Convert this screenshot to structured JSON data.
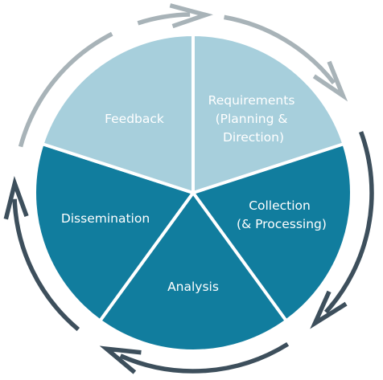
{
  "diagram": {
    "segments": [
      {
        "id": "requirements",
        "lines": [
          "Requirements",
          "(Planning &",
          "Direction)"
        ],
        "color": "#a7cfdc"
      },
      {
        "id": "collection",
        "lines": [
          "Collection",
          "(& Processing)"
        ],
        "color": "#117d9e"
      },
      {
        "id": "analysis",
        "lines": [
          "Analysis"
        ],
        "color": "#117d9e"
      },
      {
        "id": "dissemination",
        "lines": [
          "Dissemination"
        ],
        "color": "#117d9e"
      },
      {
        "id": "feedback",
        "lines": [
          "Feedback"
        ],
        "color": "#a7cfdc"
      }
    ],
    "arrows": [
      {
        "id": "top-arrow",
        "color": "#a8b3b8"
      },
      {
        "id": "right-upper-arrow",
        "color": "#a8b3b8"
      },
      {
        "id": "right-lower-arrow",
        "color": "#3d4f5c"
      },
      {
        "id": "bottom-arrow",
        "color": "#3d4f5c"
      },
      {
        "id": "left-arrow",
        "color": "#3d4f5c"
      },
      {
        "id": "upper-left-arc",
        "color": "#a8b3b8"
      }
    ]
  }
}
